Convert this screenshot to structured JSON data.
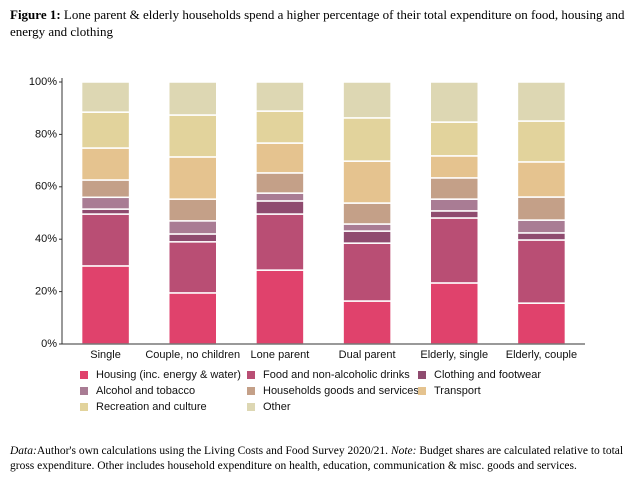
{
  "chart_data": {
    "type": "stacked-bar",
    "caption_label": "Figure 1:",
    "title": "Lone parent & elderly households spend a higher percentage of their total expenditure on food, housing and energy and clothing",
    "categories": [
      "Single",
      "Couple, no children",
      "Lone parent",
      "Dual parent",
      "Elderly, single",
      "Elderly, couple"
    ],
    "series": [
      {
        "name": "Housing (inc. energy & water)",
        "color": "#e0426c",
        "values": [
          29.8,
          19.5,
          28.2,
          16.4,
          23.3,
          15.6
        ]
      },
      {
        "name": "Food and non-alcoholic drinks",
        "color": "#b94e74",
        "values": [
          19.8,
          19.5,
          21.4,
          22.1,
          24.8,
          24.1
        ]
      },
      {
        "name": "Clothing and footwear",
        "color": "#8f4b6f",
        "values": [
          1.9,
          3.0,
          5.0,
          4.6,
          2.7,
          2.7
        ]
      },
      {
        "name": "Alcohol and tobacco",
        "color": "#a97c94",
        "values": [
          4.5,
          5.0,
          3.0,
          2.7,
          4.5,
          4.9
        ]
      },
      {
        "name": "Households goods and services",
        "color": "#c4a088",
        "values": [
          6.6,
          8.3,
          7.7,
          8.0,
          8.1,
          8.8
        ]
      },
      {
        "name": "Transport",
        "color": "#e5c38f",
        "values": [
          12.2,
          16.1,
          11.4,
          16.0,
          8.4,
          13.4
        ]
      },
      {
        "name": "Recreation and culture",
        "color": "#e2d39c",
        "values": [
          13.7,
          16.0,
          12.2,
          16.5,
          12.9,
          15.6
        ]
      },
      {
        "name": "Other",
        "color": "#ddd7b3",
        "values": [
          11.5,
          12.6,
          11.1,
          13.7,
          15.3,
          14.9
        ]
      }
    ],
    "ylim": [
      0,
      100
    ],
    "yticks": [
      {
        "value": 0,
        "label": "0%"
      },
      {
        "value": 20,
        "label": "20%"
      },
      {
        "value": 40,
        "label": "40%"
      },
      {
        "value": 60,
        "label": "60%"
      },
      {
        "value": 80,
        "label": "80%"
      },
      {
        "value": 100,
        "label": "100%"
      }
    ],
    "notes": [
      "Data:",
      "Author's own calculations using the Living Costs and Food Survey 2020/21.",
      "Note:",
      "Budget shares are calculated relative to total gross expenditure. Other includes household expenditure on health, education, communication & misc. goods and services."
    ]
  }
}
